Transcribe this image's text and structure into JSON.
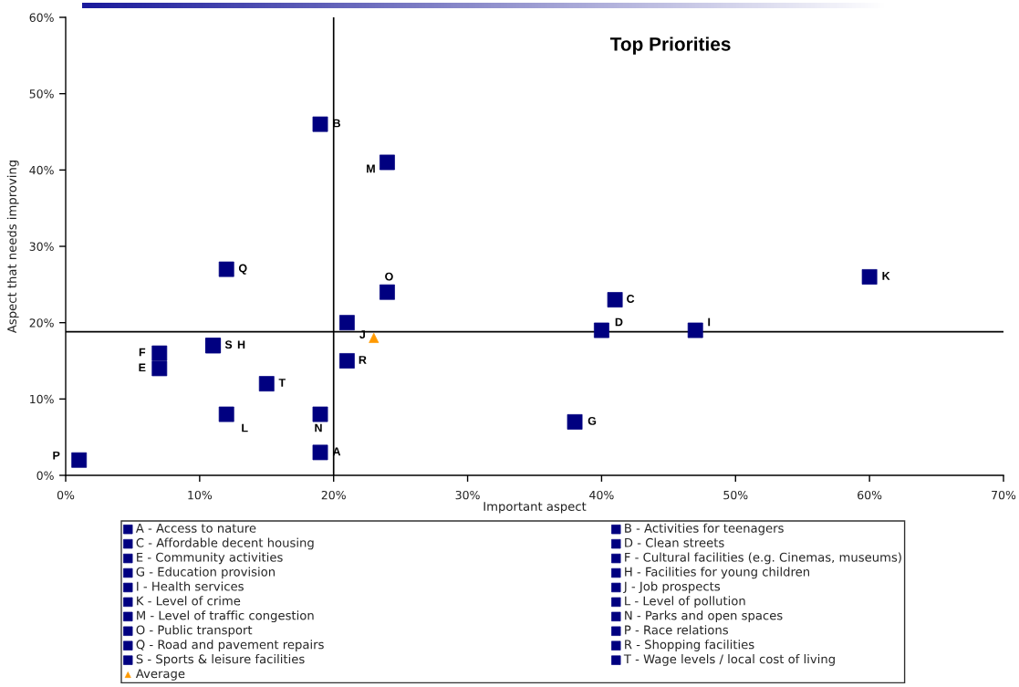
{
  "chart_data": {
    "type": "scatter",
    "title": "Top Priorities",
    "xlabel": "Important aspect",
    "ylabel": "Aspect that needs improving",
    "xlim": [
      0,
      70
    ],
    "xticks": [
      {
        "value": 0,
        "label": "0%"
      },
      {
        "value": 10,
        "label": "10%"
      },
      {
        "value": 20,
        "label": "20%"
      },
      {
        "value": 30,
        "label": "30%"
      },
      {
        "value": 40,
        "label": "40%"
      },
      {
        "value": 50,
        "label": "50%"
      },
      {
        "value": 60,
        "label": "60%"
      },
      {
        "value": 70,
        "label": "70%"
      }
    ],
    "ylim": [
      0,
      60
    ],
    "yticks": [
      {
        "value": 0,
        "label": "0%"
      },
      {
        "value": 10,
        "label": "10%"
      },
      {
        "value": 20,
        "label": "20%"
      },
      {
        "value": 30,
        "label": "30%"
      },
      {
        "value": 40,
        "label": "40%"
      },
      {
        "value": 50,
        "label": "50%"
      },
      {
        "value": 60,
        "label": "60%"
      }
    ],
    "grid": false,
    "legend": "bottom",
    "marker": "square",
    "ref_lines": [
      {
        "axis": "x",
        "value": 20,
        "color": "#000000",
        "line_style": "solid"
      },
      {
        "axis": "y",
        "value": 18.8,
        "color": "#000000",
        "line_style": "solid"
      }
    ],
    "series": [
      {
        "name": "A - Access to nature",
        "color": "#000080",
        "x": [
          19
        ],
        "values": [
          3
        ],
        "value_labels": [
          "A"
        ]
      },
      {
        "name": "B - Activities for teenagers",
        "color": "#000080",
        "x": [
          19
        ],
        "values": [
          46
        ],
        "value_labels": [
          "B"
        ]
      },
      {
        "name": "C - Affordable decent housing",
        "color": "#000080",
        "x": [
          41
        ],
        "values": [
          23
        ],
        "value_labels": [
          "C"
        ]
      },
      {
        "name": "D - Clean streets",
        "color": "#000080",
        "x": [
          40
        ],
        "values": [
          19
        ],
        "value_labels": [
          "D"
        ]
      },
      {
        "name": "E - Community activities",
        "color": "#000080",
        "x": [
          7
        ],
        "values": [
          14
        ],
        "value_labels": [
          "E"
        ]
      },
      {
        "name": "F - Cultural facilities (e.g. Cinemas, museums)",
        "color": "#000080",
        "x": [
          7
        ],
        "values": [
          16
        ],
        "value_labels": [
          "F"
        ]
      },
      {
        "name": "G - Education provision",
        "color": "#000080",
        "x": [
          38
        ],
        "values": [
          7
        ],
        "value_labels": [
          "G"
        ]
      },
      {
        "name": "H - Facilities for young children",
        "color": "#000080",
        "x": [
          11
        ],
        "values": [
          17
        ],
        "value_labels": [
          "H"
        ]
      },
      {
        "name": "I - Health services",
        "color": "#000080",
        "x": [
          47
        ],
        "values": [
          19
        ],
        "value_labels": [
          "I"
        ]
      },
      {
        "name": "J - Job prospects",
        "color": "#000080",
        "x": [
          21
        ],
        "values": [
          20
        ],
        "value_labels": [
          "J"
        ]
      },
      {
        "name": "K - Level of crime",
        "color": "#000080",
        "x": [
          60
        ],
        "values": [
          26
        ],
        "value_labels": [
          "K"
        ]
      },
      {
        "name": "L - Level of pollution",
        "color": "#000080",
        "x": [
          12
        ],
        "values": [
          8
        ],
        "value_labels": [
          "L"
        ]
      },
      {
        "name": "M - Level of traffic congestion",
        "color": "#000080",
        "x": [
          24
        ],
        "values": [
          41
        ],
        "value_labels": [
          "M"
        ]
      },
      {
        "name": "N - Parks and open spaces",
        "color": "#000080",
        "x": [
          19
        ],
        "values": [
          8
        ],
        "value_labels": [
          "N"
        ]
      },
      {
        "name": "O - Public transport",
        "color": "#000080",
        "x": [
          24
        ],
        "values": [
          24
        ],
        "value_labels": [
          "O"
        ]
      },
      {
        "name": "P - Race relations",
        "color": "#000080",
        "x": [
          1
        ],
        "values": [
          2
        ],
        "value_labels": [
          "P"
        ]
      },
      {
        "name": "Q - Road and pavement repairs",
        "color": "#000080",
        "x": [
          12
        ],
        "values": [
          27
        ],
        "value_labels": [
          "Q"
        ]
      },
      {
        "name": "R - Shopping facilities",
        "color": "#000080",
        "x": [
          21
        ],
        "values": [
          15
        ],
        "value_labels": [
          "R"
        ]
      },
      {
        "name": "S - Sports & leisure facilities",
        "color": "#000080",
        "x": [
          11
        ],
        "values": [
          17
        ],
        "value_labels": [
          "S"
        ]
      },
      {
        "name": "T - Wage levels / local cost of living",
        "color": "#000080",
        "x": [
          15
        ],
        "values": [
          12
        ],
        "value_labels": [
          "T"
        ]
      },
      {
        "name": "Average",
        "color": "#ff9900",
        "x": [
          23
        ],
        "values": [
          18
        ],
        "marker": "triangle"
      }
    ]
  }
}
